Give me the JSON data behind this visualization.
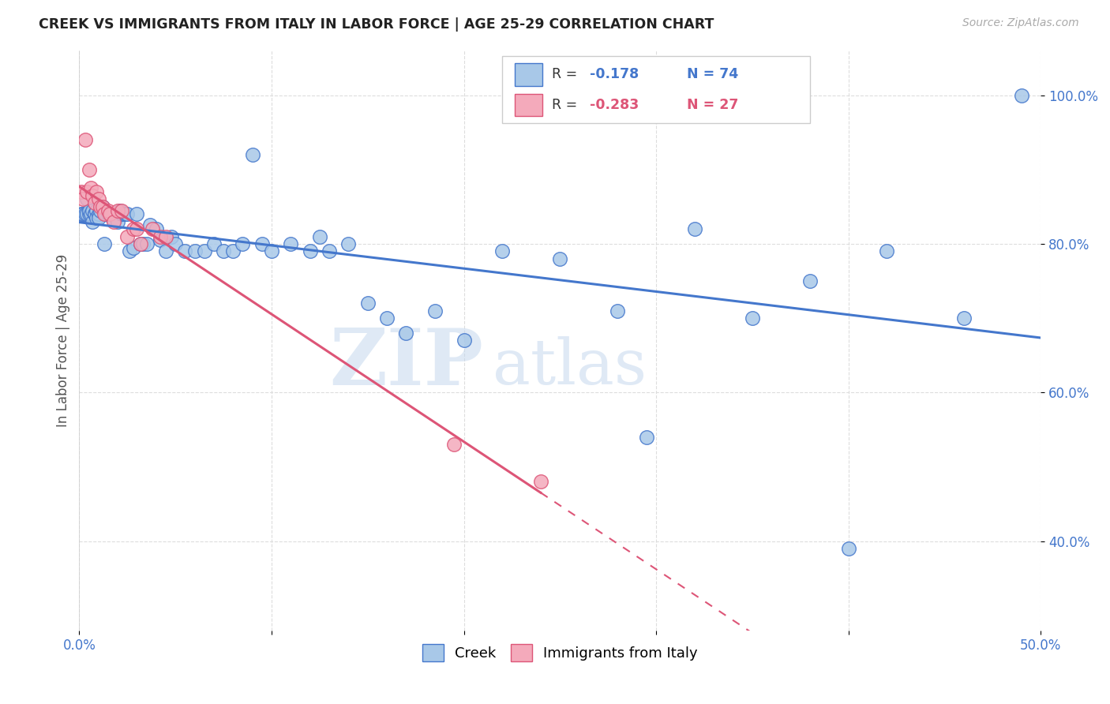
{
  "title": "CREEK VS IMMIGRANTS FROM ITALY IN LABOR FORCE | AGE 25-29 CORRELATION CHART",
  "source": "Source: ZipAtlas.com",
  "ylabel": "In Labor Force | Age 25-29",
  "x_min": 0.0,
  "x_max": 0.5,
  "y_min": 0.28,
  "y_max": 1.06,
  "x_ticks": [
    0.0,
    0.1,
    0.2,
    0.3,
    0.4,
    0.5
  ],
  "x_tick_labels": [
    "0.0%",
    "",
    "",
    "",
    "",
    "50.0%"
  ],
  "y_ticks": [
    0.4,
    0.6,
    0.8,
    1.0
  ],
  "y_tick_labels": [
    "40.0%",
    "60.0%",
    "80.0%",
    "100.0%"
  ],
  "blue_R": -0.178,
  "blue_N": 74,
  "pink_R": -0.283,
  "pink_N": 27,
  "blue_color": "#a8c8e8",
  "pink_color": "#f4aabb",
  "blue_line_color": "#4477cc",
  "pink_line_color": "#dd5577",
  "watermark_zip": "ZIP",
  "watermark_atlas": "atlas",
  "blue_scatter_x": [
    0.001,
    0.002,
    0.003,
    0.004,
    0.004,
    0.005,
    0.005,
    0.006,
    0.007,
    0.007,
    0.008,
    0.008,
    0.009,
    0.009,
    0.01,
    0.01,
    0.011,
    0.012,
    0.013,
    0.014,
    0.015,
    0.016,
    0.017,
    0.018,
    0.019,
    0.02,
    0.021,
    0.022,
    0.023,
    0.024,
    0.025,
    0.026,
    0.028,
    0.03,
    0.032,
    0.033,
    0.035,
    0.037,
    0.04,
    0.042,
    0.045,
    0.048,
    0.05,
    0.055,
    0.06,
    0.065,
    0.07,
    0.075,
    0.08,
    0.085,
    0.09,
    0.095,
    0.1,
    0.11,
    0.12,
    0.125,
    0.13,
    0.14,
    0.15,
    0.16,
    0.17,
    0.185,
    0.2,
    0.22,
    0.25,
    0.28,
    0.295,
    0.32,
    0.35,
    0.38,
    0.4,
    0.42,
    0.46,
    0.49
  ],
  "blue_scatter_y": [
    0.84,
    0.84,
    0.84,
    0.86,
    0.84,
    0.84,
    0.845,
    0.84,
    0.845,
    0.83,
    0.84,
    0.84,
    0.845,
    0.835,
    0.84,
    0.835,
    0.845,
    0.85,
    0.8,
    0.84,
    0.84,
    0.84,
    0.835,
    0.84,
    0.835,
    0.83,
    0.845,
    0.84,
    0.84,
    0.84,
    0.84,
    0.79,
    0.795,
    0.84,
    0.8,
    0.8,
    0.8,
    0.825,
    0.82,
    0.805,
    0.79,
    0.81,
    0.8,
    0.79,
    0.79,
    0.79,
    0.8,
    0.79,
    0.79,
    0.8,
    0.92,
    0.8,
    0.79,
    0.8,
    0.79,
    0.81,
    0.79,
    0.8,
    0.72,
    0.7,
    0.68,
    0.71,
    0.67,
    0.79,
    0.78,
    0.71,
    0.54,
    0.82,
    0.7,
    0.75,
    0.39,
    0.79,
    0.7,
    1.0
  ],
  "pink_scatter_x": [
    0.001,
    0.002,
    0.003,
    0.004,
    0.005,
    0.006,
    0.007,
    0.008,
    0.009,
    0.01,
    0.011,
    0.012,
    0.013,
    0.015,
    0.016,
    0.018,
    0.02,
    0.022,
    0.025,
    0.028,
    0.03,
    0.032,
    0.038,
    0.042,
    0.045,
    0.195,
    0.24
  ],
  "pink_scatter_y": [
    0.87,
    0.86,
    0.94,
    0.87,
    0.9,
    0.875,
    0.865,
    0.855,
    0.87,
    0.86,
    0.85,
    0.85,
    0.84,
    0.845,
    0.84,
    0.83,
    0.845,
    0.845,
    0.81,
    0.82,
    0.82,
    0.8,
    0.82,
    0.81,
    0.81,
    0.53,
    0.48
  ]
}
